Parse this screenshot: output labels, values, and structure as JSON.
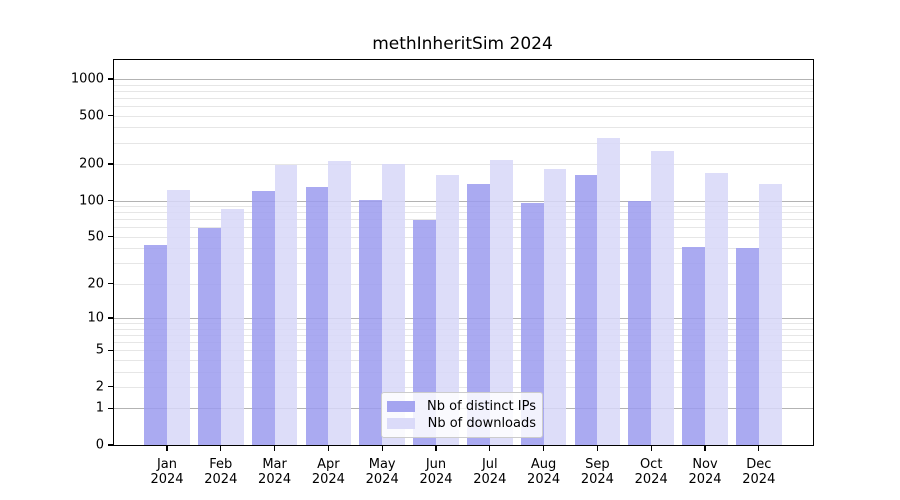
{
  "chart_data": {
    "type": "bar",
    "title": "methInheritSim 2024",
    "categories": [
      "Jan 2024",
      "Feb 2024",
      "Mar 2024",
      "Apr 2024",
      "May 2024",
      "Jun 2024",
      "Jul 2024",
      "Aug 2024",
      "Sep 2024",
      "Oct 2024",
      "Nov 2024",
      "Dec 2024"
    ],
    "series": [
      {
        "name": "Nb of distinct IPs",
        "color": "#9b9bee",
        "values": [
          43,
          59,
          120,
          129,
          101,
          69,
          136,
          95,
          164,
          100,
          41,
          40
        ]
      },
      {
        "name": "Nb of downloads",
        "color": "#d7d7f8",
        "values": [
          122,
          85,
          198,
          213,
          199,
          164,
          215,
          183,
          329,
          254,
          168,
          136
        ]
      }
    ],
    "xlabel": "",
    "ylabel": "",
    "yscale": "log1p",
    "ylim": [
      0,
      1430
    ],
    "yticks": [
      0,
      1,
      2,
      5,
      10,
      20,
      50,
      100,
      200,
      500,
      1000
    ],
    "grid": "horizontal",
    "grid_major_color": "#b3b3b3",
    "grid_minor_color": "#e6e6e6",
    "legend_position": "bottom-center"
  }
}
